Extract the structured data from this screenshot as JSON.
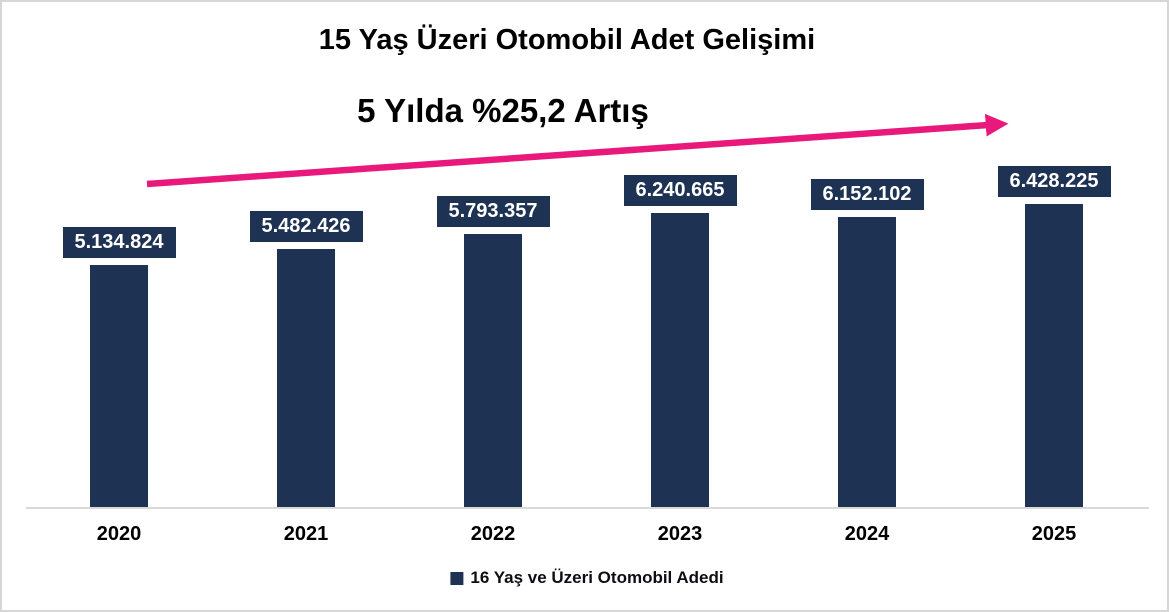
{
  "chart": {
    "title": "15 Yaş Üzeri Otomobil Adet Gelişimi",
    "subtitle": "5 Yılda %25,2 Artış",
    "legend_label": "16 Yaş ve Üzeri Otomobil Adedi"
  },
  "chart_data": {
    "type": "bar",
    "title": "15 Yaş Üzeri Otomobil Adet Gelişimi",
    "subtitle_annotation": "5 Yılda %25,2 Artış",
    "categories": [
      "2020",
      "2021",
      "2022",
      "2023",
      "2024",
      "2025"
    ],
    "series": [
      {
        "name": "16 Yaş ve Üzeri Otomobil Adedi",
        "values": [
          5134824,
          5482426,
          5793357,
          6240665,
          6152102,
          6428225
        ]
      }
    ],
    "data_labels": [
      "5.134.824",
      "5.482.426",
      "5.793.357",
      "6.240.665",
      "6.152.102",
      "6.428.225"
    ],
    "xlabel": "",
    "ylabel": "",
    "ylim": [
      0,
      6800000
    ],
    "grid": false,
    "y_axis_visible": false,
    "legend_position": "bottom-center",
    "annotation_arrow": "upward trend arrow from 2020 to 2025",
    "colors": {
      "bar": "#1e3354",
      "data_label_box_bg": "#1e3354",
      "data_label_text": "#ffffff",
      "arrow": "#e9197c",
      "axis_line": "#d9d9d9",
      "title_text": "#000000"
    }
  }
}
